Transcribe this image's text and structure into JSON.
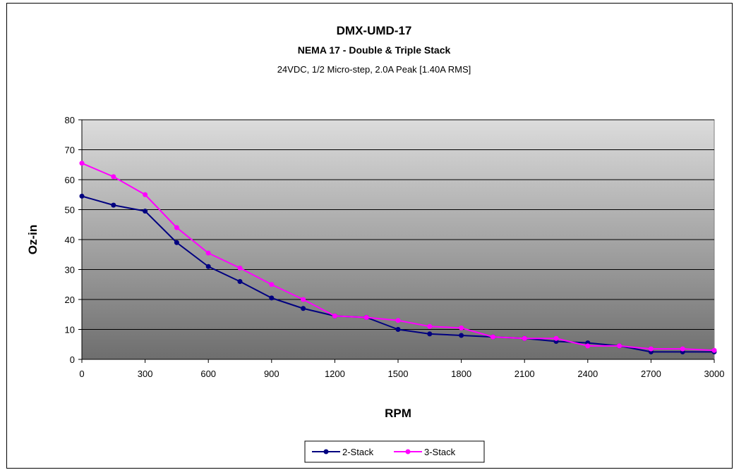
{
  "chart_data": {
    "type": "line",
    "title": "DMX-UMD-17",
    "subtitle": "NEMA 17 - Double & Triple Stack",
    "subtitle2": "24VDC, 1/2 Micro-step, 2.0A Peak [1.40A RMS]",
    "xlabel": "RPM",
    "ylabel": "Oz-in",
    "xlim": [
      0,
      3000
    ],
    "ylim": [
      0,
      80
    ],
    "xticks": [
      "0",
      "300",
      "600",
      "900",
      "1200",
      "1500",
      "1800",
      "2100",
      "2400",
      "2700",
      "3000"
    ],
    "yticks": [
      "0",
      "10",
      "20",
      "30",
      "40",
      "50",
      "60",
      "70",
      "80"
    ],
    "grid": "horizontal",
    "legend_position": "bottom",
    "x": [
      0,
      150,
      300,
      450,
      600,
      750,
      900,
      1050,
      1200,
      1350,
      1500,
      1650,
      1800,
      1950,
      2100,
      2250,
      2400,
      2550,
      2700,
      2850,
      3000
    ],
    "series": [
      {
        "name": "2-Stack",
        "color": "#000080",
        "values": [
          54.5,
          51.5,
          49.5,
          39,
          31,
          26,
          20.5,
          17,
          14.5,
          14,
          10,
          8.5,
          8,
          7.5,
          7,
          6,
          5.5,
          4.5,
          2.5,
          2.5,
          2.5
        ]
      },
      {
        "name": "3-Stack",
        "color": "#ff00ff",
        "values": [
          65.5,
          61,
          55,
          44,
          35.5,
          30.5,
          25,
          20,
          14.5,
          14,
          13,
          11,
          10.5,
          7.5,
          7,
          7,
          4.5,
          4.5,
          3.5,
          3.5,
          3
        ]
      }
    ]
  }
}
